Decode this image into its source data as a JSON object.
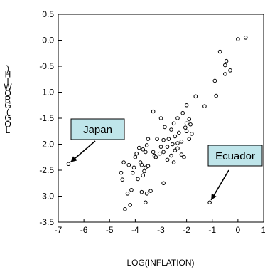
{
  "chart_data": {
    "type": "scatter",
    "title": "",
    "xlabel": "LOG(INFLATION)",
    "ylabel": ")HTWORG(GOL",
    "xlim": [
      -7,
      1
    ],
    "ylim": [
      -3.5,
      0.5
    ],
    "x_ticks": [
      "-7",
      "-6",
      "-5",
      "-4",
      "-3",
      "-2",
      "-1",
      "0",
      "1"
    ],
    "y_ticks": [
      "0.5",
      "0.0",
      "-0.5",
      "-1.0",
      "-1.5",
      "-2.0",
      "-2.5",
      "-3.0",
      "-3.5"
    ],
    "grid": false,
    "annotations": [
      {
        "text": "Japan",
        "target": [
          -6.6,
          -2.38
        ]
      },
      {
        "text": "Ecuador",
        "target": [
          -1.1,
          -3.12
        ]
      }
    ],
    "points": [
      [
        -6.6,
        -2.38
      ],
      [
        -1.1,
        -3.12
      ],
      [
        0.3,
        0.05
      ],
      [
        0.0,
        0.02
      ],
      [
        -0.7,
        -0.22
      ],
      [
        -0.45,
        -0.4
      ],
      [
        -0.5,
        -0.48
      ],
      [
        -0.5,
        -0.65
      ],
      [
        -0.3,
        -0.58
      ],
      [
        -0.9,
        -0.78
      ],
      [
        -0.85,
        -1.07
      ],
      [
        -1.3,
        -1.27
      ],
      [
        -1.65,
        -1.08
      ],
      [
        -2.0,
        -1.25
      ],
      [
        -2.15,
        -1.4
      ],
      [
        -1.9,
        -1.52
      ],
      [
        -2.35,
        -1.5
      ],
      [
        -2.0,
        -1.6
      ],
      [
        -1.85,
        -1.62
      ],
      [
        -2.05,
        -1.68
      ],
      [
        -1.8,
        -1.8
      ],
      [
        -1.9,
        -1.9
      ],
      [
        -2.5,
        -1.6
      ],
      [
        -2.6,
        -1.72
      ],
      [
        -2.45,
        -1.85
      ],
      [
        -2.3,
        -1.78
      ],
      [
        -2.7,
        -1.9
      ],
      [
        -2.85,
        -1.67
      ],
      [
        -3.0,
        -1.5
      ],
      [
        -3.15,
        -1.9
      ],
      [
        -2.9,
        -1.92
      ],
      [
        -2.2,
        -1.95
      ],
      [
        -2.55,
        -2.0
      ],
      [
        -2.75,
        -2.05
      ],
      [
        -2.45,
        -2.12
      ],
      [
        -2.35,
        -2.08
      ],
      [
        -2.0,
        -1.75
      ],
      [
        -2.1,
        -2.25
      ],
      [
        -2.2,
        -2.2
      ],
      [
        -2.6,
        -2.22
      ],
      [
        -2.9,
        -2.15
      ],
      [
        -3.05,
        -2.18
      ],
      [
        -3.0,
        -2.05
      ],
      [
        -2.75,
        -2.3
      ],
      [
        -3.25,
        -2.22
      ],
      [
        -3.3,
        -2.15
      ],
      [
        -3.5,
        -1.9
      ],
      [
        -3.55,
        -2.02
      ],
      [
        -3.6,
        -2.15
      ],
      [
        -3.7,
        -2.1
      ],
      [
        -3.85,
        -2.07
      ],
      [
        -4.0,
        -2.25
      ],
      [
        -3.95,
        -2.18
      ],
      [
        -3.75,
        -2.4
      ],
      [
        -3.6,
        -2.45
      ],
      [
        -3.5,
        -2.42
      ],
      [
        -3.8,
        -2.35
      ],
      [
        -4.05,
        -2.45
      ],
      [
        -4.1,
        -2.55
      ],
      [
        -4.25,
        -2.4
      ],
      [
        -4.45,
        -2.35
      ],
      [
        -3.7,
        -2.6
      ],
      [
        -3.9,
        -2.67
      ],
      [
        -3.55,
        -2.95
      ],
      [
        -3.75,
        -2.92
      ],
      [
        -4.15,
        -2.88
      ],
      [
        -3.4,
        -2.9
      ],
      [
        -4.3,
        -2.95
      ],
      [
        -3.6,
        -3.12
      ],
      [
        -4.2,
        -3.17
      ],
      [
        -4.4,
        -3.25
      ],
      [
        -3.3,
        -1.37
      ],
      [
        -2.9,
        -2.75
      ],
      [
        -2.5,
        -2.35
      ],
      [
        -4.55,
        -2.55
      ],
      [
        -4.5,
        -2.68
      ],
      [
        -3.65,
        -2.52
      ],
      [
        -3.2,
        -2.25
      ],
      [
        -2.35,
        -1.98
      ]
    ]
  }
}
